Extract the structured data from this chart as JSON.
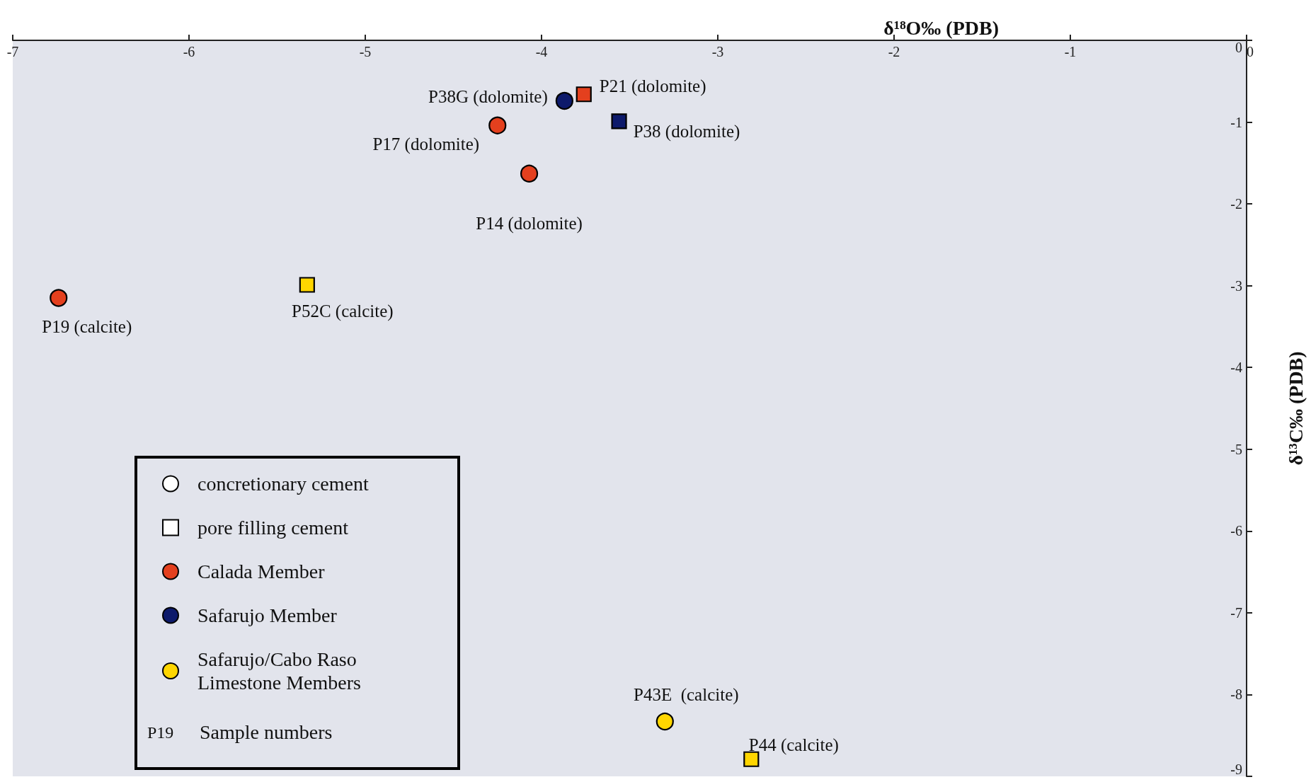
{
  "chart_data": {
    "type": "scatter",
    "xlabel": "δ¹⁸O‰ (PDB)",
    "ylabel": "δ¹³C‰ (PDB)",
    "xlim": [
      -7,
      0
    ],
    "xticks": [
      -7,
      -6,
      -5,
      -4,
      -3,
      -2,
      -1,
      0
    ],
    "ylim": [
      -9,
      0
    ],
    "yticks": [
      -9,
      -8,
      -7,
      -6,
      -5,
      -4,
      -3,
      -2,
      -1,
      0
    ],
    "grid": false,
    "legend": "bottom left",
    "annotations": [
      "P19",
      "Sample numbers"
    ],
    "series": [
      {
        "name": "concretionary cement",
        "marker": "circle",
        "color": "#ffffff"
      },
      {
        "name": "pore filling cement",
        "marker": "square",
        "color": "#ffffff"
      },
      {
        "name": "Calada Member",
        "marker": "circle",
        "color": "#e4401e",
        "x": [
          -4.25,
          -4.07,
          -6.74
        ],
        "values": [
          -1.04,
          -1.63,
          -3.15
        ],
        "value_labels": [
          "P17 (dolomite)",
          "P14 (dolomite)",
          "P19 (calcite)"
        ]
      },
      {
        "marker": "square",
        "color": "#e4401e",
        "x": [
          -3.76
        ],
        "values": [
          -0.66
        ],
        "value_labels": [
          "P21 (dolomite)"
        ]
      },
      {
        "name": "Safarujo Member",
        "marker": "circle",
        "color": "#0d1a6b",
        "x": [
          -3.87
        ],
        "values": [
          -0.74
        ],
        "value_labels": [
          "P38G (dolomite)"
        ]
      },
      {
        "marker": "square",
        "color": "#0d1a6b",
        "x": [
          -3.56
        ],
        "values": [
          -0.99
        ],
        "value_labels": [
          "P38 (dolomite)"
        ]
      },
      {
        "name": "Safarujo/Cabo Raso\nLimestone Members",
        "marker": "circle",
        "color": "#ffd600",
        "x": [
          -3.3
        ],
        "values": [
          -8.33
        ],
        "value_labels": [
          "P43E  (calcite)"
        ]
      },
      {
        "marker": "square",
        "color": "#ffd600",
        "x": [
          -5.33,
          -2.81
        ],
        "values": [
          -2.99,
          -8.79
        ],
        "value_labels": [
          "P52C (calcite)",
          "P44 (calcite)"
        ]
      }
    ]
  }
}
